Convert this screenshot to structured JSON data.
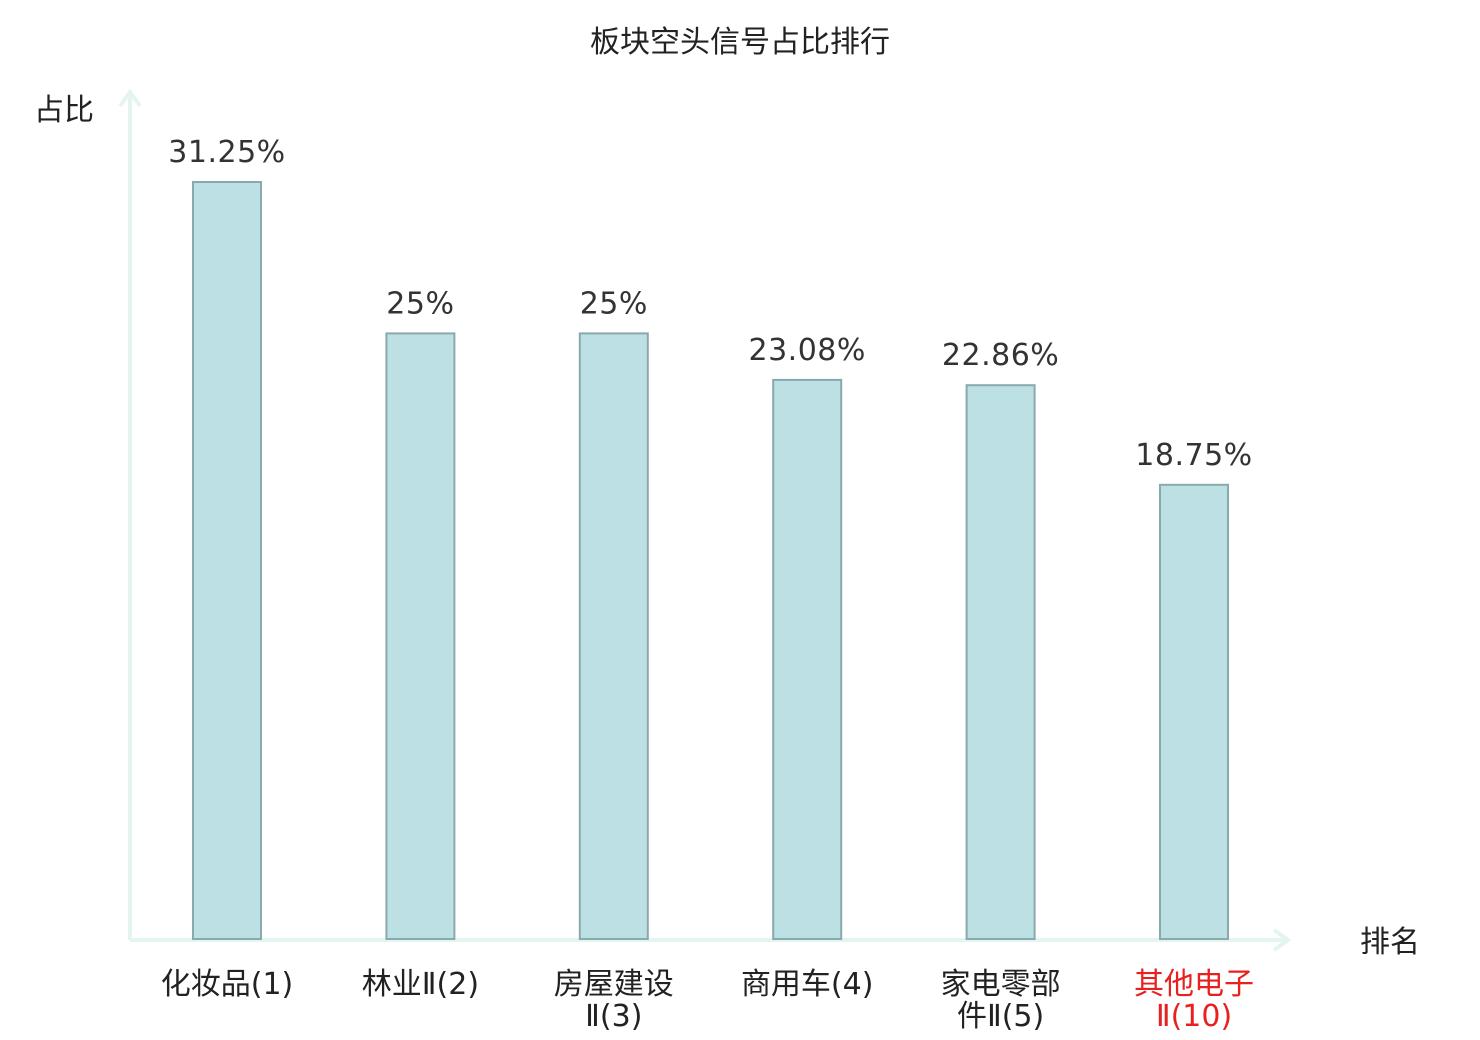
{
  "chart_data": {
    "type": "bar",
    "title": "板块空头信号占比排行",
    "xlabel": "排名",
    "ylabel": "占比",
    "categories": [
      [
        "化妆品(1)"
      ],
      [
        "林业Ⅱ(2)"
      ],
      [
        "房屋建设",
        "Ⅱ(3)"
      ],
      [
        "商用车(4)"
      ],
      [
        "家电零部",
        "件Ⅱ(5)"
      ],
      [
        "其他电子",
        "Ⅱ(10)"
      ]
    ],
    "values": [
      31.25,
      25,
      25,
      23.08,
      22.86,
      18.75
    ],
    "value_labels": [
      "31.25%",
      "25%",
      "25%",
      "23.08%",
      "22.86%",
      "18.75%"
    ],
    "highlight_index": 5,
    "ylim": [
      0,
      32
    ],
    "grid": false,
    "colors": {
      "bar_fill": "#bce0e3",
      "bar_stroke": "#8aa9ac",
      "axis": "#e3f4f1",
      "text": "#222222",
      "highlight_text": "#e8201f"
    }
  }
}
